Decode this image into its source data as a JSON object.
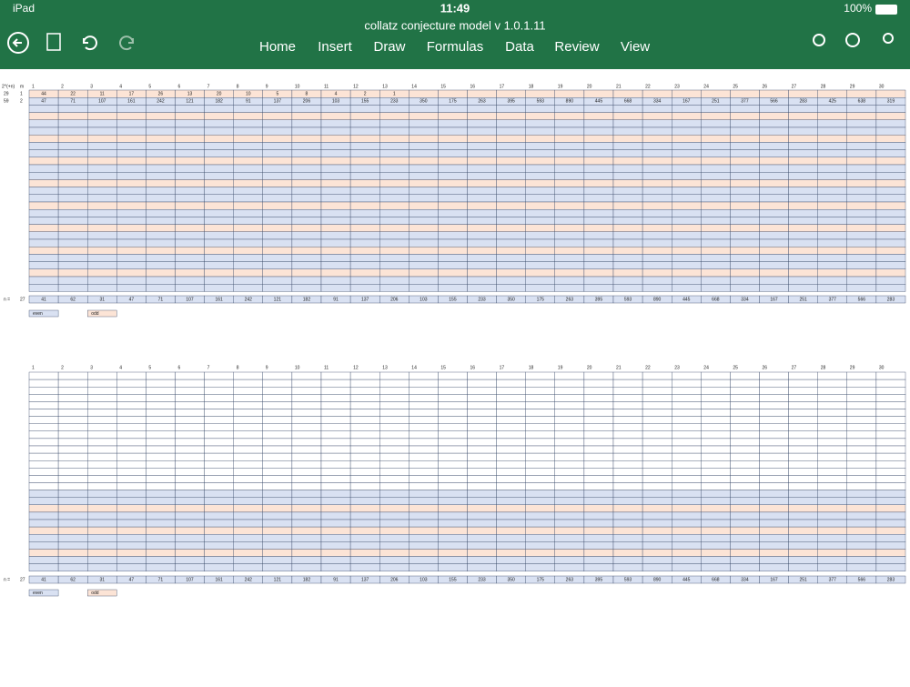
{
  "status": {
    "device": "iPad",
    "time": "11:49",
    "battery": "100%"
  },
  "title": "collatz conjecture model v 1.0.1.11",
  "menu": [
    "Home",
    "Insert",
    "Draw",
    "Formulas",
    "Data",
    "Review",
    "View"
  ],
  "sheet1": {
    "corner": "2^(+n)",
    "header_label": "m",
    "columns": [
      1,
      2,
      3,
      4,
      5,
      6,
      7,
      8,
      9,
      10,
      11,
      12,
      13,
      14,
      15,
      16,
      17,
      18,
      19,
      20,
      21,
      22,
      23,
      24,
      25,
      26,
      27,
      28,
      29,
      30
    ],
    "rows": [
      {
        "label": "29",
        "index": "1",
        "cells": [
          44,
          22,
          11,
          17,
          26,
          13,
          20,
          10,
          5,
          8,
          4,
          2,
          1
        ]
      },
      {
        "label": "59",
        "index": "2",
        "cells": [
          47,
          71,
          107,
          161,
          242,
          121,
          182,
          91,
          137,
          206,
          103,
          155,
          233,
          350,
          175,
          263,
          395,
          593,
          890,
          445,
          668,
          334,
          167,
          251,
          377,
          566,
          283,
          425,
          638,
          319
        ]
      }
    ],
    "n_label": "n =",
    "n_index": "27",
    "n_values": [
      41,
      62,
      31,
      47,
      71,
      107,
      161,
      242,
      121,
      182,
      91,
      137,
      206,
      103,
      155,
      233,
      350,
      175,
      263,
      395,
      593,
      890,
      445,
      668,
      334,
      167,
      251,
      377,
      566,
      283
    ],
    "legend": [
      "even",
      "odd"
    ]
  },
  "sheet2": {
    "columns": [
      1,
      2,
      3,
      4,
      5,
      6,
      7,
      8,
      9,
      10,
      11,
      12,
      13,
      14,
      15,
      16,
      17,
      18,
      19,
      20,
      21,
      22,
      23,
      24,
      25,
      26,
      27,
      28,
      29,
      30
    ],
    "n_label": "n =",
    "n_index": "27",
    "n_values": [
      41,
      62,
      31,
      47,
      71,
      107,
      161,
      242,
      121,
      182,
      91,
      137,
      206,
      103,
      155,
      233,
      350,
      175,
      263,
      395,
      593,
      890,
      445,
      668,
      334,
      167,
      251,
      377,
      566,
      283
    ],
    "legend": [
      "even",
      "odd"
    ]
  }
}
